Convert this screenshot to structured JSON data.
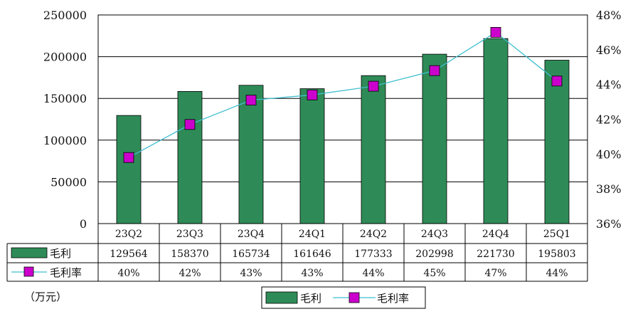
{
  "chart_data": {
    "type": "bar",
    "categories": [
      "23Q2",
      "23Q3",
      "23Q4",
      "24Q1",
      "24Q2",
      "24Q3",
      "24Q4",
      "25Q1"
    ],
    "series": [
      {
        "name": "毛利",
        "type": "bar",
        "axis": "left",
        "color": "#2e8b57",
        "values": [
          129564,
          158370,
          165734,
          161646,
          177333,
          202998,
          221730,
          195803
        ]
      },
      {
        "name": "毛利率",
        "type": "line",
        "axis": "right",
        "color": "#cc00cc",
        "line_color": "#3fbfcf",
        "values": [
          39.8,
          41.7,
          43.1,
          43.4,
          43.9,
          44.8,
          47.0,
          44.2
        ],
        "labels": [
          "40%",
          "42%",
          "43%",
          "43%",
          "44%",
          "45%",
          "47%",
          "44%"
        ]
      }
    ],
    "bar_labels": [
      "129564",
      "158370",
      "165734",
      "161646",
      "177333",
      "202998",
      "221730",
      "195803"
    ],
    "y_left": {
      "range": [
        0,
        250000
      ],
      "ticks": [
        "0",
        "50000",
        "100000",
        "150000",
        "200000",
        "250000"
      ]
    },
    "y_right": {
      "range": [
        36,
        48
      ],
      "ticks": [
        "36%",
        "38%",
        "40%",
        "42%",
        "44%",
        "46%",
        "48%"
      ]
    },
    "unit_label": "（万元）",
    "legend": {
      "placement": "bottom-center",
      "items": [
        "毛利",
        "毛利率"
      ]
    },
    "grid": true
  }
}
